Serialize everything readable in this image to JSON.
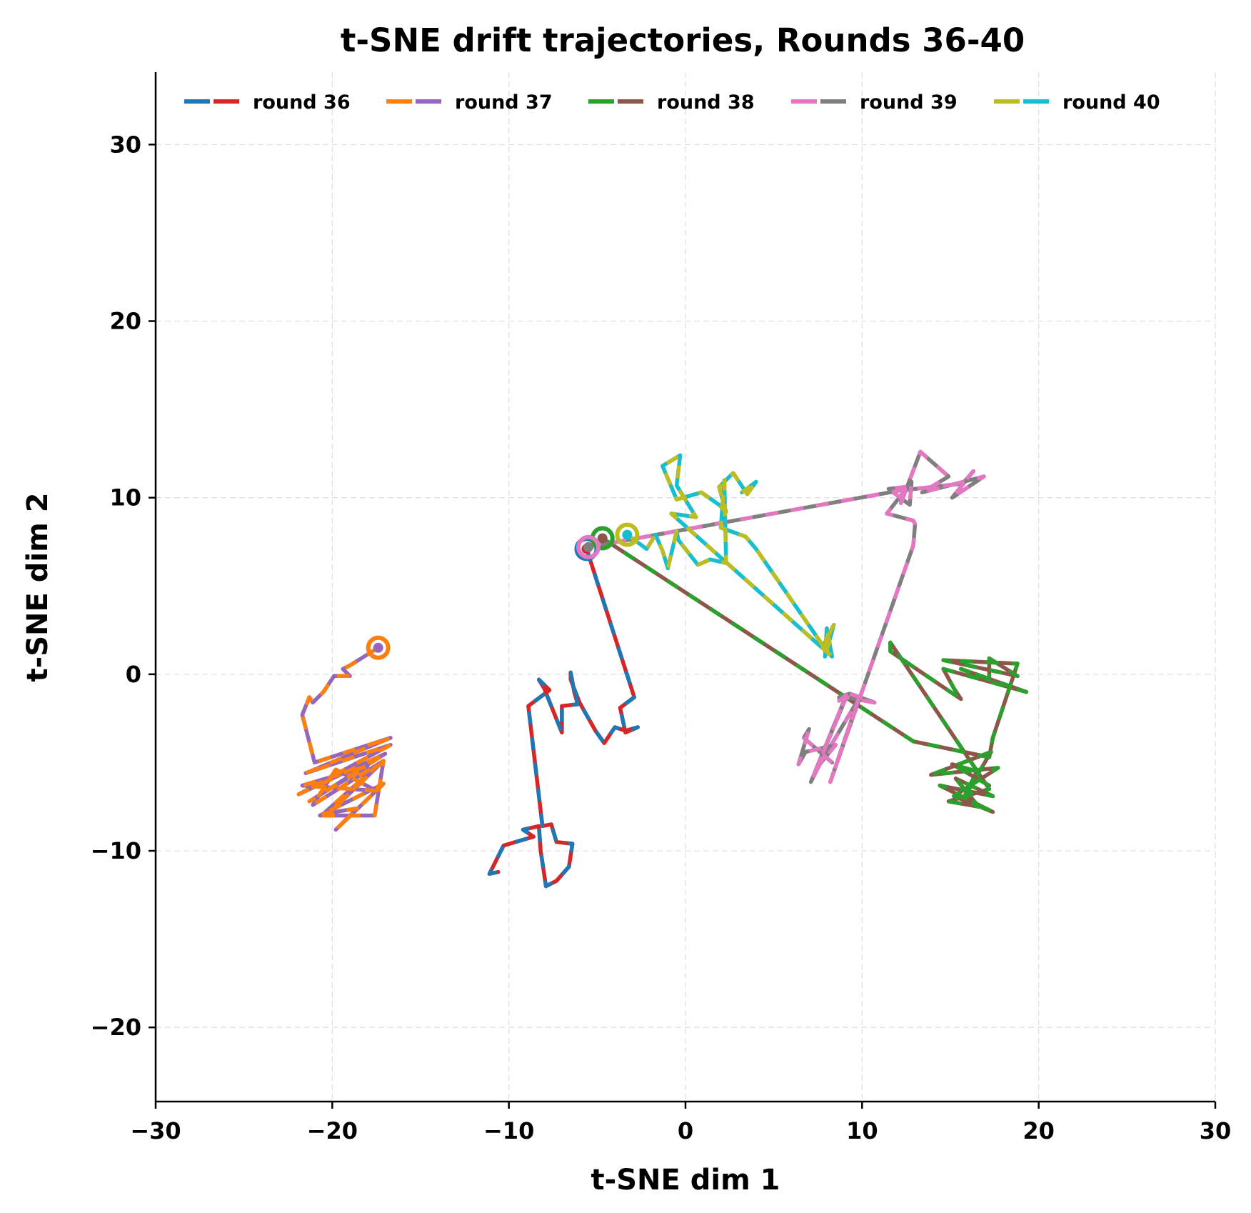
{
  "chart_data": {
    "type": "line",
    "title": "t-SNE drift trajectories, Rounds 36-40",
    "xlabel": "t-SNE dim 1",
    "ylabel": "t-SNE dim 2",
    "xlim": [
      -30,
      30
    ],
    "ylim": [
      -24.2,
      34.1
    ],
    "xticks": [
      -30,
      -20,
      -10,
      0,
      10,
      20,
      30
    ],
    "yticks": [
      -20,
      -10,
      0,
      10,
      20,
      30
    ],
    "xtick_labels": [
      "−30",
      "−20",
      "−10",
      "0",
      "10",
      "20",
      "30"
    ],
    "ytick_labels": [
      "−20",
      "−10",
      "0",
      "10",
      "20",
      "30"
    ],
    "grid": true,
    "legend_position": "upper center",
    "legend": [
      {
        "label": "round 36",
        "colors": [
          "#1f77b4",
          "#d62728"
        ]
      },
      {
        "label": "round 37",
        "colors": [
          "#ff7f0e",
          "#9467bd"
        ]
      },
      {
        "label": "round 38",
        "colors": [
          "#2ca02c",
          "#8c564b"
        ]
      },
      {
        "label": "round 39",
        "colors": [
          "#e377c2",
          "#7f7f7f"
        ]
      },
      {
        "label": "round 40",
        "colors": [
          "#bcbd22",
          "#17becf"
        ]
      }
    ],
    "series": [
      {
        "name": "round 36",
        "colors": [
          "#1f77b4",
          "#d62728"
        ],
        "start": [
          -5.6,
          7.1
        ],
        "points": [
          [
            -5.6,
            7.1
          ],
          [
            -2.9,
            -1.3
          ],
          [
            -3.7,
            -1.9
          ],
          [
            -3.4,
            -3.3
          ],
          [
            -2.7,
            -3.0
          ],
          [
            -3.4,
            -3.2
          ],
          [
            -4.0,
            -3.0
          ],
          [
            -4.6,
            -3.9
          ],
          [
            -5.1,
            -3.2
          ],
          [
            -6.0,
            -1.6
          ],
          [
            -6.5,
            -0.3
          ],
          [
            -6.5,
            0.1
          ],
          [
            -6.3,
            -1.0
          ],
          [
            -6.1,
            -1.7
          ],
          [
            -7.0,
            -1.8
          ],
          [
            -7.0,
            -3.3
          ],
          [
            -8.0,
            -0.8
          ],
          [
            -8.3,
            -0.3
          ],
          [
            -7.7,
            -0.9
          ],
          [
            -8.9,
            -1.8
          ],
          [
            -8.1,
            -8.6
          ],
          [
            -7.6,
            -8.5
          ],
          [
            -7.3,
            -9.5
          ],
          [
            -6.4,
            -9.6
          ],
          [
            -6.6,
            -10.9
          ],
          [
            -7.3,
            -11.7
          ],
          [
            -7.9,
            -12.0
          ],
          [
            -8.2,
            -10.0
          ],
          [
            -8.3,
            -8.6
          ],
          [
            -9.2,
            -8.8
          ],
          [
            -8.6,
            -9.2
          ],
          [
            -10.3,
            -9.7
          ],
          [
            -11.1,
            -11.3
          ],
          [
            -10.6,
            -11.2
          ]
        ]
      },
      {
        "name": "round 37",
        "colors": [
          "#ff7f0e",
          "#9467bd"
        ],
        "start": [
          -17.4,
          1.5
        ],
        "points": [
          [
            -17.4,
            1.5
          ],
          [
            -19.0,
            0.5
          ],
          [
            -19.4,
            0.3
          ],
          [
            -19.0,
            -0.1
          ],
          [
            -19.9,
            -0.1
          ],
          [
            -20.5,
            -1.0
          ],
          [
            -21.1,
            -1.6
          ],
          [
            -21.3,
            -1.3
          ],
          [
            -21.7,
            -2.3
          ],
          [
            -21.0,
            -5.0
          ],
          [
            -16.7,
            -3.6
          ],
          [
            -21.5,
            -5.6
          ],
          [
            -16.7,
            -4.0
          ],
          [
            -21.9,
            -6.8
          ],
          [
            -17.0,
            -4.5
          ],
          [
            -21.3,
            -7.2
          ],
          [
            -18.0,
            -5.2
          ],
          [
            -21.7,
            -6.3
          ],
          [
            -17.5,
            -6.6
          ],
          [
            -19.8,
            -5.4
          ],
          [
            -21.1,
            -7.4
          ],
          [
            -17.1,
            -4.9
          ],
          [
            -20.0,
            -7.7
          ],
          [
            -17.5,
            -5.2
          ],
          [
            -20.5,
            -7.9
          ],
          [
            -18.6,
            -7.6
          ],
          [
            -19.8,
            -8.8
          ],
          [
            -17.1,
            -6.2
          ],
          [
            -20.7,
            -8.0
          ],
          [
            -17.6,
            -8.0
          ],
          [
            -17.1,
            -4.9
          ]
        ]
      },
      {
        "name": "round 38",
        "colors": [
          "#2ca02c",
          "#8c564b"
        ],
        "start": [
          -4.7,
          7.7
        ],
        "points": [
          [
            -4.7,
            7.7
          ],
          [
            12.9,
            -3.8
          ],
          [
            17.2,
            -4.7
          ],
          [
            17.4,
            -3.6
          ],
          [
            18.8,
            0.6
          ],
          [
            14.6,
            0.8
          ],
          [
            18.8,
            -0.1
          ],
          [
            17.2,
            0.9
          ],
          [
            17.2,
            -0.3
          ],
          [
            15.6,
            0.3
          ],
          [
            19.3,
            -1.0
          ],
          [
            14.6,
            0.3
          ],
          [
            15.2,
            -0.8
          ],
          [
            15.6,
            -1.4
          ],
          [
            15.0,
            -1.0
          ],
          [
            11.6,
            1.3
          ],
          [
            11.6,
            1.8
          ],
          [
            17.2,
            -6.5
          ],
          [
            14.9,
            -7.2
          ],
          [
            16.6,
            -7.5
          ],
          [
            15.3,
            -5.9
          ],
          [
            17.4,
            -6.9
          ],
          [
            14.4,
            -6.3
          ],
          [
            17.4,
            -7.8
          ],
          [
            15.2,
            -6.9
          ],
          [
            17.7,
            -5.3
          ],
          [
            13.9,
            -5.7
          ],
          [
            17.3,
            -4.4
          ],
          [
            15.7,
            -7.1
          ],
          [
            16.5,
            -5.5
          ],
          [
            15.1,
            -5.1
          ],
          [
            17.2,
            -6.3
          ]
        ]
      },
      {
        "name": "round 39",
        "colors": [
          "#e377c2",
          "#7f7f7f"
        ],
        "start": [
          -5.5,
          7.2
        ],
        "points": [
          [
            -5.5,
            7.2
          ],
          [
            12.1,
            10.4
          ],
          [
            15.7,
            10.8
          ],
          [
            16.3,
            11.5
          ],
          [
            15.1,
            10.0
          ],
          [
            16.9,
            11.2
          ],
          [
            13.4,
            10.3
          ],
          [
            14.9,
            11.2
          ],
          [
            13.3,
            12.6
          ],
          [
            12.2,
            9.7
          ],
          [
            12.4,
            10.6
          ],
          [
            11.5,
            10.5
          ],
          [
            12.7,
            9.6
          ],
          [
            12.8,
            10.9
          ],
          [
            11.4,
            9.1
          ],
          [
            12.9,
            8.7
          ],
          [
            13.0,
            8.5
          ],
          [
            12.9,
            7.3
          ],
          [
            8.2,
            -6.1
          ],
          [
            9.8,
            -1.4
          ],
          [
            7.3,
            -5.6
          ],
          [
            9.1,
            -1.2
          ],
          [
            8.7,
            -1.5
          ],
          [
            8.7,
            -1.3
          ],
          [
            9.3,
            -1.1
          ],
          [
            10.7,
            -1.6
          ],
          [
            9.1,
            -1.3
          ],
          [
            7.1,
            -6.1
          ],
          [
            7.6,
            -5.1
          ],
          [
            8.5,
            -4.0
          ],
          [
            6.8,
            -4.4
          ],
          [
            6.4,
            -5.1
          ],
          [
            7.0,
            -3.1
          ],
          [
            6.7,
            -3.6
          ],
          [
            8.3,
            -5.0
          ]
        ]
      },
      {
        "name": "round 40",
        "colors": [
          "#bcbd22",
          "#17becf"
        ],
        "start": [
          -3.3,
          7.9
        ],
        "points": [
          [
            -3.3,
            7.9
          ],
          [
            -2.2,
            7.1
          ],
          [
            -1.7,
            7.9
          ],
          [
            -1.3,
            7.0
          ],
          [
            -1.0,
            6.0
          ],
          [
            -0.5,
            8.1
          ],
          [
            -0.4,
            7.6
          ],
          [
            0.7,
            6.2
          ],
          [
            1.4,
            6.5
          ],
          [
            2.3,
            6.3
          ],
          [
            2.2,
            11.0
          ],
          [
            2.0,
            8.3
          ],
          [
            3.4,
            7.8
          ],
          [
            4.0,
            7.1
          ],
          [
            7.8,
            1.6
          ],
          [
            8.4,
            2.8
          ],
          [
            7.9,
            1.0
          ],
          [
            8.0,
            2.6
          ],
          [
            8.3,
            1.0
          ],
          [
            -0.8,
            9.1
          ],
          [
            0.6,
            8.9
          ],
          [
            -0.5,
            10.7
          ],
          [
            -0.3,
            12.4
          ],
          [
            -1.3,
            11.8
          ],
          [
            -0.5,
            9.9
          ],
          [
            0.9,
            10.3
          ],
          [
            1.9,
            9.6
          ],
          [
            2.3,
            9.2
          ],
          [
            1.9,
            10.6
          ],
          [
            2.7,
            11.4
          ],
          [
            3.5,
            10.2
          ],
          [
            4.0,
            10.9
          ],
          [
            3.2,
            10.3
          ]
        ]
      }
    ]
  }
}
